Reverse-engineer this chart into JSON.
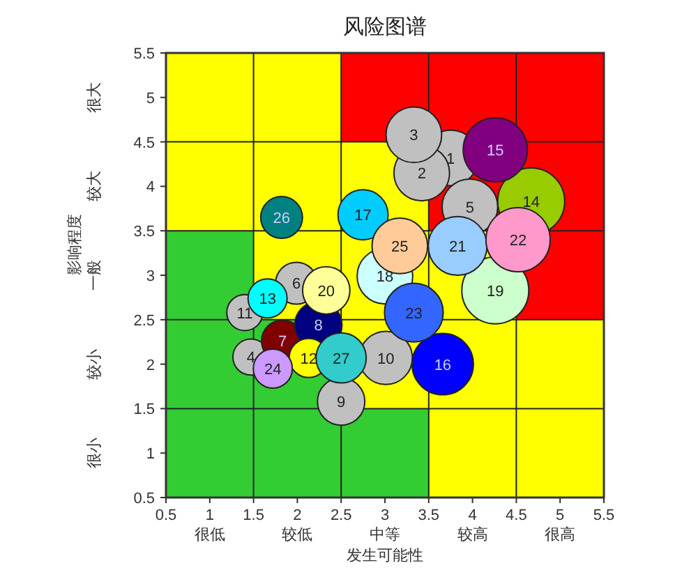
{
  "chart_data": {
    "type": "bubble",
    "title": "风险图谱",
    "xlabel": "发生可能性",
    "ylabel": "影响程度",
    "xlim": [
      0.5,
      5.5
    ],
    "ylim": [
      0.5,
      5.5
    ],
    "xticks": [
      0.5,
      {
        "value": 1,
        "label": "1\n很低"
      },
      1.5,
      {
        "value": 2,
        "label": "2\n较低"
      },
      2.5,
      {
        "value": 3,
        "label": "3\n中等"
      },
      3.5,
      {
        "value": 4,
        "label": "4\n较高"
      },
      4.5,
      {
        "value": 5,
        "label": "5\n很高"
      },
      5.5
    ],
    "yticks": [
      0.5,
      1,
      1.5,
      2,
      2.5,
      3,
      3.5,
      4,
      4.5,
      5,
      5.5
    ],
    "grid": true,
    "annotations": [
      "很小",
      "较小",
      "一般",
      "较大",
      "很大"
    ],
    "series": [
      {
        "name": "1",
        "color": "#c0c0c0",
        "x": [
          3.75
        ],
        "values": [
          4.32
        ],
        "sizes": [
          0.69
        ]
      },
      {
        "name": "2",
        "color": "#c0c0c0",
        "x": [
          3.42
        ],
        "values": [
          4.15
        ],
        "sizes": [
          0.69
        ]
      },
      {
        "name": "3",
        "color": "#c0c0c0",
        "x": [
          3.33
        ],
        "values": [
          4.58
        ],
        "sizes": [
          0.69
        ]
      },
      {
        "name": "4",
        "color": "#c0c0c0",
        "x": [
          1.47
        ],
        "values": [
          2.08
        ],
        "sizes": [
          0.29
        ]
      },
      {
        "name": "5",
        "color": "#c0c0c0",
        "x": [
          3.97
        ],
        "values": [
          3.77
        ],
        "sizes": [
          0.69
        ]
      },
      {
        "name": "6",
        "color": "#c0c0c0",
        "x": [
          1.99
        ],
        "values": [
          2.91
        ],
        "sizes": [
          0.39
        ]
      },
      {
        "name": "7",
        "color": "#800000",
        "x": [
          1.83
        ],
        "values": [
          2.26
        ],
        "sizes": [
          0.39
        ]
      },
      {
        "name": "8",
        "color": "#000080",
        "x": [
          2.24
        ],
        "values": [
          2.44
        ],
        "sizes": [
          0.5
        ]
      },
      {
        "name": "9",
        "color": "#c0c0c0",
        "x": [
          2.5
        ],
        "values": [
          1.58
        ],
        "sizes": [
          0.5
        ]
      },
      {
        "name": "10",
        "color": "#c0c0c0",
        "x": [
          3.01
        ],
        "values": [
          2.07
        ],
        "sizes": [
          0.63
        ]
      },
      {
        "name": "11",
        "color": "#c0c0c0",
        "x": [
          1.4
        ],
        "values": [
          2.58
        ],
        "sizes": [
          0.29
        ]
      },
      {
        "name": "12",
        "color": "#ffff00",
        "x": [
          2.13
        ],
        "values": [
          2.07
        ],
        "sizes": [
          0.34
        ]
      },
      {
        "name": "13",
        "color": "#00ffff",
        "x": [
          1.66
        ],
        "values": [
          2.74
        ],
        "sizes": [
          0.34
        ]
      },
      {
        "name": "14",
        "color": "#99cc00",
        "x": [
          4.67
        ],
        "values": [
          3.83
        ],
        "sizes": [
          1
        ]
      },
      {
        "name": "15",
        "color": "#800080",
        "x": [
          4.26
        ],
        "values": [
          4.41
        ],
        "sizes": [
          0.92
        ]
      },
      {
        "name": "16",
        "color": "#0000ff",
        "x": [
          3.66
        ],
        "values": [
          2.0
        ],
        "sizes": [
          0.84
        ]
      },
      {
        "name": "17",
        "color": "#00ccff",
        "x": [
          2.75
        ],
        "values": [
          3.68
        ],
        "sizes": [
          0.56
        ]
      },
      {
        "name": "18",
        "color": "#ccffff",
        "x": [
          3.0
        ],
        "values": [
          2.99
        ],
        "sizes": [
          0.69
        ]
      },
      {
        "name": "19",
        "color": "#ccffcc",
        "x": [
          4.26
        ],
        "values": [
          2.83
        ],
        "sizes": [
          1
        ]
      },
      {
        "name": "20",
        "color": "#ffff99",
        "x": [
          2.33
        ],
        "values": [
          2.83
        ],
        "sizes": [
          0.5
        ]
      },
      {
        "name": "21",
        "color": "#99ccff",
        "x": [
          3.83
        ],
        "values": [
          3.33
        ],
        "sizes": [
          0.77
        ]
      },
      {
        "name": "22",
        "color": "#ff99cc",
        "x": [
          4.52
        ],
        "values": [
          3.4
        ],
        "sizes": [
          0.92
        ]
      },
      {
        "name": "23",
        "color": "#3366ff",
        "x": [
          3.33
        ],
        "values": [
          2.58
        ],
        "sizes": [
          0.77
        ]
      },
      {
        "name": "24",
        "color": "#cc99ff",
        "x": [
          1.72
        ],
        "values": [
          1.95
        ],
        "sizes": [
          0.34
        ]
      },
      {
        "name": "25",
        "color": "#ffcc99",
        "x": [
          3.17
        ],
        "values": [
          3.33
        ],
        "sizes": [
          0.69
        ]
      },
      {
        "name": "26",
        "color": "#008080",
        "x": [
          1.82
        ],
        "values": [
          3.65
        ],
        "sizes": [
          0.39
        ]
      },
      {
        "name": "27",
        "color": "#33cccc",
        "x": [
          2.5
        ],
        "values": [
          2.07
        ],
        "sizes": [
          0.56
        ]
      }
    ]
  }
}
